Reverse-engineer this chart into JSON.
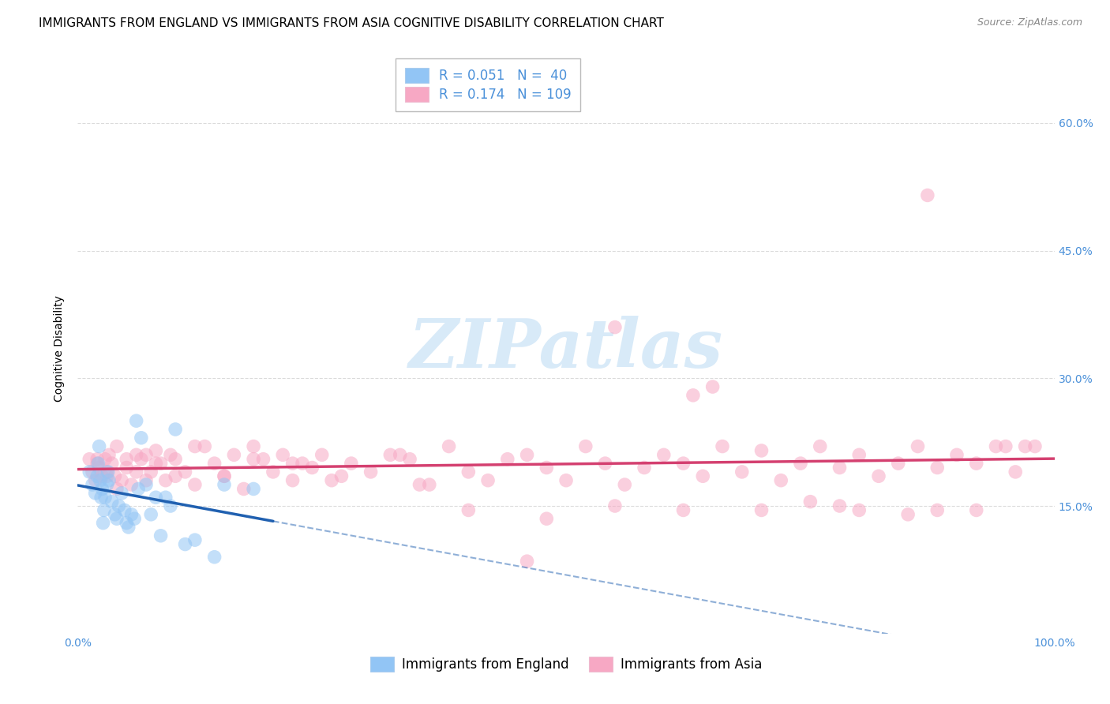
{
  "title": "IMMIGRANTS FROM ENGLAND VS IMMIGRANTS FROM ASIA COGNITIVE DISABILITY CORRELATION CHART",
  "source": "Source: ZipAtlas.com",
  "ylabel": "Cognitive Disability",
  "england_R": 0.051,
  "england_N": 40,
  "asia_R": 0.174,
  "asia_N": 109,
  "england_color": "#92c5f5",
  "asia_color": "#f7a8c4",
  "england_line_color": "#2060b0",
  "asia_line_color": "#d44070",
  "england_line_dash": false,
  "asia_line_dash": false,
  "england_line_end": 20,
  "background_color": "#ffffff",
  "grid_color": "#cccccc",
  "watermark_color": "#d8eaf8",
  "tick_color": "#4a90d9",
  "title_fontsize": 11,
  "axis_label_fontsize": 10,
  "tick_fontsize": 10,
  "legend_fontsize": 12,
  "legend_value_color": "#4a90d9",
  "xlim": [
    0,
    100
  ],
  "ylim": [
    0,
    67
  ],
  "yticks": [
    15,
    30,
    45,
    60
  ],
  "ytick_labels": [
    "15.0%",
    "30.0%",
    "45.0%",
    "60.0%"
  ],
  "xticks": [
    0,
    100
  ],
  "xtick_labels": [
    "0.0%",
    "100.0%"
  ],
  "eng_x": [
    1.2,
    1.5,
    1.8,
    2.0,
    2.1,
    2.2,
    2.3,
    2.4,
    2.5,
    2.6,
    2.7,
    2.8,
    3.0,
    3.1,
    3.2,
    3.5,
    3.8,
    4.0,
    4.2,
    4.5,
    4.8,
    5.0,
    5.2,
    5.5,
    5.8,
    6.0,
    6.2,
    6.5,
    7.0,
    7.5,
    8.0,
    8.5,
    9.0,
    9.5,
    10.0,
    11.0,
    12.0,
    14.0,
    15.0,
    18.0
  ],
  "eng_y": [
    19.0,
    17.5,
    16.5,
    18.5,
    20.0,
    22.0,
    18.0,
    16.0,
    17.0,
    13.0,
    14.5,
    16.0,
    17.5,
    19.0,
    18.0,
    15.5,
    14.0,
    13.5,
    15.0,
    16.5,
    14.5,
    13.0,
    12.5,
    14.0,
    13.5,
    25.0,
    17.0,
    23.0,
    17.5,
    14.0,
    16.0,
    11.5,
    16.0,
    15.0,
    24.0,
    10.5,
    11.0,
    9.0,
    17.5,
    17.0
  ],
  "asia_x": [
    1.2,
    1.5,
    1.8,
    2.0,
    2.2,
    2.5,
    2.8,
    3.0,
    3.2,
    3.5,
    3.8,
    4.0,
    4.5,
    5.0,
    5.5,
    6.0,
    6.5,
    7.0,
    7.5,
    8.0,
    8.5,
    9.0,
    9.5,
    10.0,
    11.0,
    12.0,
    13.0,
    14.0,
    15.0,
    16.0,
    17.0,
    18.0,
    19.0,
    20.0,
    21.0,
    22.0,
    23.0,
    24.0,
    25.0,
    26.0,
    28.0,
    30.0,
    32.0,
    34.0,
    36.0,
    38.0,
    40.0,
    42.0,
    44.0,
    46.0,
    48.0,
    50.0,
    52.0,
    54.0,
    56.0,
    58.0,
    60.0,
    62.0,
    64.0,
    66.0,
    68.0,
    70.0,
    72.0,
    74.0,
    76.0,
    78.0,
    80.0,
    82.0,
    84.0,
    86.0,
    88.0,
    90.0,
    92.0,
    94.0,
    96.0,
    98.0,
    46.0,
    55.0,
    63.0,
    87.0,
    2.0,
    3.0,
    4.0,
    5.0,
    6.0,
    7.0,
    8.0,
    10.0,
    12.0,
    15.0,
    18.0,
    22.0,
    27.0,
    33.0,
    40.0,
    48.0,
    55.0,
    62.0,
    70.0,
    78.0,
    85.0,
    92.0,
    97.0,
    65.0,
    75.0,
    80.0,
    88.0,
    95.0,
    35.0
  ],
  "asia_y": [
    20.5,
    19.0,
    18.0,
    20.0,
    19.5,
    18.5,
    20.5,
    19.0,
    21.0,
    20.0,
    18.5,
    22.0,
    18.0,
    19.5,
    17.5,
    21.0,
    20.5,
    18.0,
    19.0,
    21.5,
    20.0,
    18.0,
    21.0,
    20.5,
    19.0,
    17.5,
    22.0,
    20.0,
    18.5,
    21.0,
    17.0,
    22.0,
    20.5,
    19.0,
    21.0,
    18.0,
    20.0,
    19.5,
    21.0,
    18.0,
    20.0,
    19.0,
    21.0,
    20.5,
    17.5,
    22.0,
    19.0,
    18.0,
    20.5,
    21.0,
    19.5,
    18.0,
    22.0,
    20.0,
    17.5,
    19.5,
    21.0,
    20.0,
    18.5,
    22.0,
    19.0,
    21.5,
    18.0,
    20.0,
    22.0,
    19.5,
    21.0,
    18.5,
    20.0,
    22.0,
    19.5,
    21.0,
    20.0,
    22.0,
    19.0,
    22.0,
    8.5,
    36.0,
    28.0,
    51.5,
    20.5,
    18.5,
    17.0,
    20.5,
    19.0,
    21.0,
    20.0,
    18.5,
    22.0,
    18.5,
    20.5,
    20.0,
    18.5,
    21.0,
    14.5,
    13.5,
    15.0,
    14.5,
    14.5,
    15.0,
    14.0,
    14.5,
    22.0,
    29.0,
    15.5,
    14.5,
    14.5,
    22.0,
    17.5
  ]
}
